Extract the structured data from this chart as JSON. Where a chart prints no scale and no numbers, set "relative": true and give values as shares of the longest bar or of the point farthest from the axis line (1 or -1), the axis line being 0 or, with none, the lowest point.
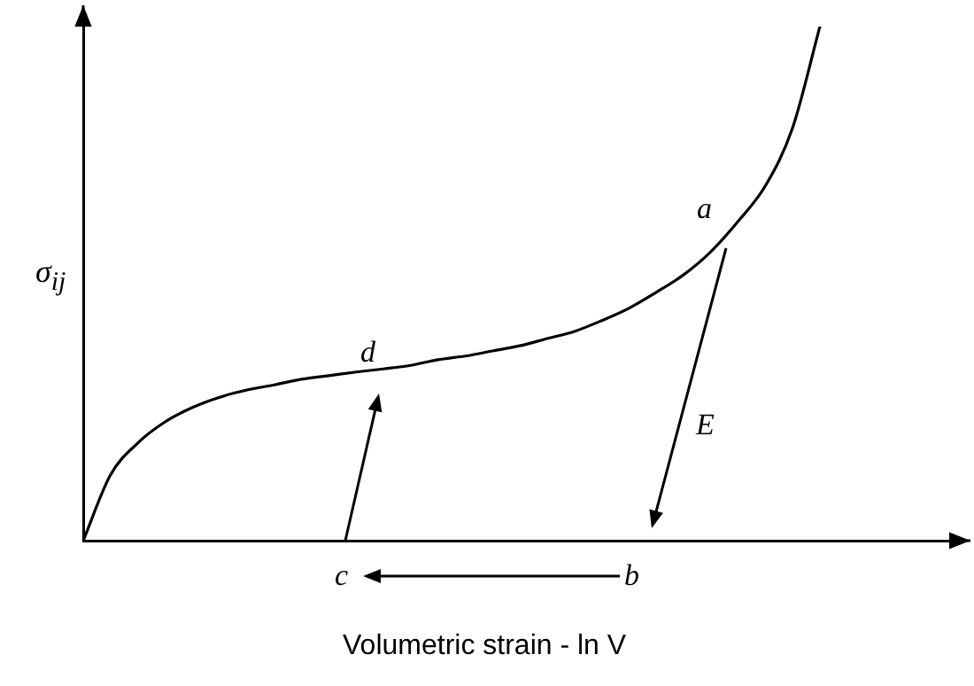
{
  "chart_data": {
    "type": "line",
    "relative": true,
    "xlabel": "Volumetric strain - ln V",
    "ylabel": "σ$_{ij}$",
    "categories": [
      null,
      null,
      null,
      null,
      null,
      null,
      null,
      null,
      null,
      null,
      null,
      null,
      null,
      null,
      null,
      null,
      null,
      null,
      null,
      null,
      null,
      null,
      null,
      null,
      null,
      null,
      null,
      null,
      null,
      null,
      null,
      null,
      null
    ],
    "series": [
      {
        "color": "#000000",
        "values": [
          0,
          0.128,
          0.19,
          0.231,
          0.259,
          0.279,
          0.293,
          0.303,
          0.314,
          0.321,
          0.328,
          0.334,
          0.341,
          0.352,
          0.359,
          0.369,
          0.379,
          0.393,
          0.407,
          0.428,
          0.452,
          0.483,
          0.517,
          0.562,
          0.621,
          0.69,
          0.803,
          1,
          null,
          null,
          null,
          null,
          null
        ]
      }
    ],
    "annotations": [
      "a",
      "b",
      "c",
      "d",
      "E"
    ],
    "grid": false,
    "legend": false,
    "tick_labels": false,
    "marker": "none",
    "line_style": "solid"
  }
}
